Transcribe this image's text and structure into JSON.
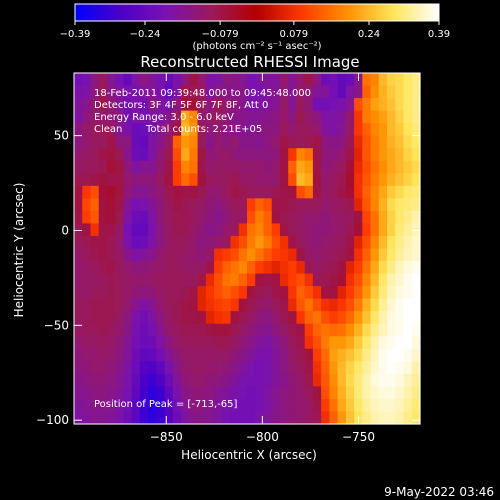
{
  "chart_data": {
    "type": "heatmap",
    "title": "Reconstructed RHESSI Image",
    "xlabel": "Heliocentric X (arcsec)",
    "ylabel": "Heliocentric Y (arcsec)",
    "xlim": [
      -898,
      -718
    ],
    "ylim": [
      -102,
      83
    ],
    "x_ticks": [
      -850,
      -800,
      -750
    ],
    "x_tick_labels": [
      "−850",
      "−800",
      "−750"
    ],
    "y_ticks": [
      -100,
      -50,
      0,
      50
    ],
    "y_tick_labels": [
      "−100",
      "−50",
      "0",
      "50"
    ],
    "colorbar": {
      "range": [
        -0.39,
        0.39
      ],
      "tick_values": [
        -0.39,
        -0.24,
        -0.079,
        0.079,
        0.24,
        0.39
      ],
      "tick_labels": [
        "−0.39",
        "−0.24",
        "−0.079",
        "0.079",
        "0.24",
        "0.39"
      ],
      "units_label": "(photons cm⁻² s⁻¹ asec⁻²)",
      "colors": [
        "#0000ff",
        "#4b00c8",
        "#7a12b0",
        "#9a1a5a",
        "#b40000",
        "#ff3a00",
        "#ff9200",
        "#ffe55a",
        "#ffffff"
      ]
    },
    "annotations": {
      "time_range": "18-Feb-2011 09:39:48.000 to 09:45:48.000",
      "detectors": "Detectors: 3F 4F 5F 6F 7F 8F, Att 0",
      "energy_range": "Energy Range: 3.0 - 6.0 keV",
      "clean": "Clean",
      "total_counts": "Total counts: 2.21E+05",
      "peak": "Position of Peak = [-713,-65]"
    },
    "peak_position": [
      -713,
      -65
    ],
    "total_counts": 221000,
    "image_grid": [
      [
        -0.21,
        -0.2,
        -0.14,
        -0.1,
        -0.16,
        -0.2,
        -0.24,
        -0.18,
        -0.14,
        -0.17,
        -0.2,
        -0.23,
        -0.19,
        -0.14,
        -0.07,
        -0.12,
        -0.18,
        -0.18,
        -0.14,
        -0.15,
        -0.16,
        -0.2,
        -0.18,
        -0.17,
        -0.17,
        -0.12,
        -0.16,
        -0.12,
        -0.08,
        -0.14,
        -0.22,
        -0.21,
        -0.24,
        -0.23,
        -0.15,
        0.16,
        0.18,
        0.24,
        0.27,
        0.28,
        0.3,
        0.32
      ],
      [
        -0.19,
        -0.18,
        -0.14,
        -0.09,
        -0.15,
        -0.17,
        -0.19,
        -0.2,
        -0.17,
        -0.16,
        -0.19,
        -0.24,
        -0.18,
        -0.08,
        -0.09,
        -0.1,
        -0.18,
        -0.14,
        -0.15,
        -0.15,
        -0.15,
        -0.19,
        -0.19,
        -0.17,
        -0.16,
        -0.12,
        -0.16,
        -0.11,
        -0.13,
        -0.17,
        -0.17,
        -0.21,
        -0.24,
        -0.18,
        -0.15,
        0.14,
        0.19,
        0.23,
        0.26,
        0.28,
        0.3,
        0.32
      ],
      [
        -0.17,
        -0.16,
        -0.12,
        -0.08,
        -0.12,
        -0.17,
        -0.21,
        -0.18,
        -0.21,
        -0.14,
        -0.18,
        -0.2,
        -0.14,
        -0.07,
        -0.06,
        -0.1,
        -0.14,
        -0.09,
        -0.12,
        -0.14,
        -0.15,
        -0.19,
        -0.18,
        -0.17,
        -0.16,
        -0.11,
        -0.16,
        -0.1,
        -0.13,
        -0.21,
        -0.21,
        -0.2,
        -0.19,
        -0.16,
        0.12,
        0.17,
        0.21,
        0.23,
        0.25,
        0.28,
        0.3,
        0.32
      ],
      [
        -0.18,
        -0.14,
        -0.12,
        -0.12,
        -0.13,
        -0.14,
        -0.21,
        -0.18,
        -0.2,
        -0.18,
        -0.18,
        -0.15,
        -0.1,
        0.22,
        0.18,
        -0.12,
        -0.11,
        -0.1,
        -0.13,
        -0.15,
        -0.15,
        -0.16,
        -0.16,
        -0.15,
        -0.14,
        -0.12,
        -0.14,
        -0.09,
        -0.12,
        -0.14,
        -0.18,
        -0.18,
        -0.17,
        -0.12,
        0.09,
        0.17,
        0.19,
        0.21,
        0.24,
        0.27,
        0.3,
        0.32
      ],
      [
        -0.14,
        -0.11,
        -0.1,
        -0.09,
        -0.1,
        -0.16,
        -0.19,
        -0.23,
        -0.22,
        -0.2,
        -0.16,
        -0.12,
        -0.08,
        0.24,
        0.2,
        -0.1,
        -0.13,
        -0.12,
        -0.14,
        -0.15,
        -0.16,
        -0.16,
        -0.15,
        -0.14,
        -0.14,
        -0.1,
        -0.12,
        -0.1,
        -0.1,
        -0.12,
        -0.17,
        -0.18,
        -0.16,
        -0.11,
        0.09,
        0.14,
        0.18,
        0.2,
        0.24,
        0.26,
        0.29,
        0.31
      ],
      [
        -0.14,
        -0.12,
        -0.1,
        -0.1,
        -0.08,
        -0.13,
        -0.14,
        -0.23,
        -0.24,
        -0.18,
        -0.15,
        -0.1,
        0.14,
        0.2,
        0.18,
        -0.1,
        -0.15,
        -0.12,
        -0.14,
        -0.12,
        -0.15,
        -0.15,
        -0.16,
        -0.14,
        -0.12,
        -0.08,
        -0.09,
        -0.1,
        -0.09,
        -0.08,
        -0.14,
        -0.15,
        -0.14,
        -0.09,
        0.07,
        0.13,
        0.17,
        0.2,
        0.23,
        0.25,
        0.28,
        0.3
      ],
      [
        -0.12,
        -0.11,
        -0.1,
        -0.08,
        -0.07,
        -0.09,
        -0.16,
        -0.22,
        -0.23,
        -0.18,
        -0.13,
        -0.09,
        0.12,
        0.22,
        0.17,
        -0.08,
        -0.13,
        -0.12,
        -0.11,
        -0.13,
        -0.14,
        -0.14,
        -0.14,
        -0.14,
        -0.13,
        -0.07,
        0.09,
        0.18,
        0.16,
        -0.08,
        -0.13,
        -0.14,
        -0.12,
        -0.08,
        0.06,
        0.13,
        0.17,
        0.2,
        0.22,
        0.24,
        0.27,
        0.29
      ],
      [
        -0.11,
        -0.1,
        -0.1,
        -0.09,
        -0.06,
        -0.07,
        -0.13,
        -0.18,
        -0.16,
        -0.16,
        -0.12,
        -0.08,
        0.1,
        0.18,
        0.16,
        -0.08,
        -0.12,
        -0.11,
        -0.11,
        -0.11,
        -0.12,
        -0.12,
        -0.12,
        -0.13,
        -0.12,
        -0.07,
        0.14,
        0.22,
        0.2,
        -0.08,
        -0.13,
        -0.12,
        -0.1,
        -0.06,
        0.07,
        0.12,
        0.16,
        0.19,
        0.22,
        0.24,
        0.26,
        0.28
      ],
      [
        -0.09,
        -0.09,
        -0.08,
        -0.07,
        -0.08,
        -0.08,
        -0.12,
        -0.14,
        -0.13,
        -0.13,
        -0.1,
        -0.07,
        0.1,
        0.15,
        0.12,
        -0.07,
        -0.1,
        -0.11,
        -0.1,
        -0.09,
        -0.11,
        -0.11,
        -0.12,
        -0.12,
        -0.12,
        -0.07,
        0.12,
        0.24,
        0.22,
        -0.07,
        -0.12,
        -0.1,
        -0.09,
        -0.05,
        0.08,
        0.13,
        0.17,
        0.2,
        0.23,
        0.25,
        0.27,
        0.29
      ],
      [
        -0.07,
        0.09,
        0.12,
        -0.06,
        -0.05,
        -0.07,
        -0.13,
        -0.16,
        -0.16,
        -0.14,
        -0.12,
        -0.09,
        -0.07,
        -0.08,
        -0.07,
        -0.09,
        -0.12,
        -0.12,
        -0.1,
        -0.08,
        -0.09,
        -0.1,
        -0.1,
        -0.1,
        -0.09,
        -0.08,
        -0.07,
        0.12,
        0.15,
        -0.08,
        -0.11,
        -0.1,
        -0.08,
        -0.06,
        0.08,
        0.14,
        0.18,
        0.22,
        0.26,
        0.28,
        0.3,
        0.31
      ],
      [
        -0.07,
        0.11,
        0.14,
        -0.07,
        -0.06,
        -0.08,
        -0.16,
        -0.2,
        -0.19,
        -0.17,
        -0.13,
        -0.1,
        -0.08,
        -0.09,
        -0.1,
        -0.11,
        -0.13,
        -0.14,
        -0.12,
        -0.1,
        -0.1,
        0.1,
        0.14,
        0.12,
        -0.08,
        -0.08,
        -0.09,
        -0.1,
        -0.1,
        -0.1,
        -0.12,
        -0.11,
        -0.1,
        -0.09,
        0.06,
        0.13,
        0.18,
        0.23,
        0.28,
        0.3,
        0.31,
        0.32
      ],
      [
        -0.08,
        0.1,
        0.13,
        -0.07,
        -0.06,
        -0.09,
        -0.18,
        -0.22,
        -0.23,
        -0.18,
        -0.13,
        -0.1,
        -0.09,
        -0.09,
        -0.1,
        -0.12,
        -0.14,
        -0.15,
        -0.13,
        -0.11,
        -0.11,
        0.12,
        0.17,
        0.14,
        -0.07,
        -0.09,
        -0.1,
        -0.11,
        -0.12,
        -0.12,
        -0.13,
        -0.12,
        -0.11,
        -0.1,
        -0.07,
        0.11,
        0.16,
        0.22,
        0.27,
        0.3,
        0.32,
        0.34
      ],
      [
        -0.09,
        -0.07,
        0.08,
        -0.08,
        -0.08,
        -0.11,
        -0.2,
        -0.24,
        -0.24,
        -0.19,
        -0.14,
        -0.11,
        -0.09,
        -0.09,
        -0.11,
        -0.13,
        -0.15,
        -0.14,
        -0.12,
        -0.1,
        0.08,
        0.16,
        0.18,
        0.14,
        0.1,
        -0.08,
        -0.1,
        -0.11,
        -0.12,
        -0.13,
        -0.13,
        -0.12,
        -0.11,
        -0.09,
        -0.06,
        0.1,
        0.16,
        0.22,
        0.27,
        0.31,
        0.33,
        0.35
      ],
      [
        -0.1,
        -0.09,
        -0.08,
        -0.08,
        -0.09,
        -0.12,
        -0.19,
        -0.23,
        -0.22,
        -0.18,
        -0.14,
        -0.11,
        -0.1,
        -0.1,
        -0.12,
        -0.14,
        -0.13,
        -0.12,
        -0.1,
        0.08,
        0.12,
        0.17,
        0.2,
        0.17,
        0.12,
        0.08,
        -0.08,
        -0.1,
        -0.12,
        -0.13,
        -0.12,
        -0.11,
        -0.1,
        -0.08,
        0.06,
        0.12,
        0.18,
        0.24,
        0.29,
        0.32,
        0.34,
        0.36
      ],
      [
        -0.11,
        -0.1,
        -0.09,
        -0.08,
        -0.09,
        -0.11,
        -0.15,
        -0.18,
        -0.17,
        -0.15,
        -0.12,
        -0.1,
        -0.1,
        -0.11,
        -0.12,
        -0.13,
        -0.11,
        0.08,
        0.1,
        0.12,
        0.16,
        0.19,
        0.16,
        0.13,
        0.1,
        0.09,
        0.07,
        -0.08,
        -0.11,
        -0.12,
        -0.11,
        -0.1,
        -0.09,
        -0.07,
        0.08,
        0.14,
        0.2,
        0.26,
        0.3,
        0.33,
        0.35,
        0.36
      ],
      [
        -0.12,
        -0.11,
        -0.1,
        -0.09,
        -0.08,
        -0.1,
        -0.12,
        -0.14,
        -0.13,
        -0.12,
        -0.11,
        -0.1,
        -0.1,
        -0.11,
        -0.11,
        -0.11,
        -0.08,
        0.1,
        0.14,
        0.16,
        0.18,
        0.14,
        0.1,
        0.08,
        0.06,
        0.08,
        0.1,
        0.07,
        -0.09,
        -0.11,
        -0.1,
        -0.09,
        -0.07,
        0.06,
        0.1,
        0.16,
        0.22,
        0.28,
        0.32,
        0.35,
        0.37,
        0.38
      ],
      [
        -0.12,
        -0.11,
        -0.11,
        -0.1,
        -0.09,
        -0.1,
        -0.11,
        -0.12,
        -0.12,
        -0.11,
        -0.1,
        -0.1,
        -0.1,
        -0.1,
        -0.1,
        -0.08,
        0.07,
        0.12,
        0.16,
        0.17,
        0.14,
        0.1,
        -0.07,
        -0.08,
        -0.07,
        0.07,
        0.1,
        0.12,
        0.08,
        -0.09,
        -0.09,
        -0.08,
        -0.06,
        0.08,
        0.12,
        0.18,
        0.24,
        0.3,
        0.34,
        0.36,
        0.38,
        0.39
      ],
      [
        -0.11,
        -0.11,
        -0.1,
        -0.1,
        -0.09,
        -0.1,
        -0.11,
        -0.13,
        -0.14,
        -0.13,
        -0.11,
        -0.1,
        -0.1,
        -0.09,
        -0.08,
        0.06,
        0.09,
        0.12,
        0.14,
        0.12,
        0.09,
        -0.07,
        -0.09,
        -0.1,
        -0.08,
        -0.07,
        0.09,
        0.14,
        0.12,
        0.08,
        -0.07,
        -0.07,
        0.06,
        0.1,
        0.14,
        0.2,
        0.26,
        0.31,
        0.35,
        0.37,
        0.38,
        0.39
      ],
      [
        -0.1,
        -0.1,
        -0.09,
        -0.09,
        -0.09,
        -0.1,
        -0.12,
        -0.16,
        -0.18,
        -0.16,
        -0.12,
        -0.1,
        -0.09,
        -0.08,
        -0.07,
        0.06,
        0.08,
        0.1,
        0.11,
        0.09,
        -0.07,
        -0.09,
        -0.11,
        -0.12,
        -0.1,
        -0.08,
        0.07,
        0.13,
        0.16,
        0.12,
        0.08,
        0.07,
        0.09,
        0.12,
        0.17,
        0.23,
        0.28,
        0.33,
        0.36,
        0.38,
        0.39,
        0.39
      ],
      [
        -0.1,
        -0.1,
        -0.09,
        -0.09,
        -0.09,
        -0.11,
        -0.14,
        -0.19,
        -0.21,
        -0.18,
        -0.14,
        -0.11,
        -0.09,
        -0.08,
        -0.08,
        -0.07,
        0.06,
        0.08,
        0.09,
        -0.07,
        -0.09,
        -0.11,
        -0.13,
        -0.14,
        -0.12,
        -0.09,
        -0.07,
        0.09,
        0.14,
        0.16,
        0.12,
        0.1,
        0.12,
        0.15,
        0.2,
        0.25,
        0.3,
        0.34,
        0.37,
        0.38,
        0.39,
        0.39
      ],
      [
        -0.11,
        -0.1,
        -0.1,
        -0.09,
        -0.1,
        -0.12,
        -0.15,
        -0.2,
        -0.22,
        -0.2,
        -0.16,
        -0.12,
        -0.1,
        -0.09,
        -0.09,
        -0.09,
        -0.08,
        -0.07,
        -0.07,
        -0.09,
        -0.11,
        -0.13,
        -0.15,
        -0.16,
        -0.14,
        -0.11,
        -0.09,
        -0.07,
        0.1,
        0.14,
        0.16,
        0.15,
        0.16,
        0.19,
        0.23,
        0.28,
        0.32,
        0.35,
        0.37,
        0.38,
        0.39,
        0.38
      ],
      [
        -0.12,
        -0.11,
        -0.11,
        -0.1,
        -0.11,
        -0.13,
        -0.16,
        -0.21,
        -0.23,
        -0.22,
        -0.18,
        -0.14,
        -0.11,
        -0.1,
        -0.1,
        -0.1,
        -0.1,
        -0.09,
        -0.09,
        -0.11,
        -0.13,
        -0.15,
        -0.17,
        -0.18,
        -0.16,
        -0.13,
        -0.1,
        -0.08,
        0.08,
        0.12,
        0.17,
        0.2,
        0.2,
        0.22,
        0.26,
        0.3,
        0.34,
        0.37,
        0.38,
        0.39,
        0.39,
        0.37
      ],
      [
        -0.13,
        -0.12,
        -0.12,
        -0.11,
        -0.12,
        -0.14,
        -0.17,
        -0.22,
        -0.25,
        -0.24,
        -0.21,
        -0.17,
        -0.13,
        -0.11,
        -0.11,
        -0.11,
        -0.11,
        -0.11,
        -0.11,
        -0.13,
        -0.15,
        -0.17,
        -0.19,
        -0.19,
        -0.17,
        -0.14,
        -0.11,
        -0.09,
        -0.07,
        0.1,
        0.15,
        0.21,
        0.23,
        0.25,
        0.28,
        0.32,
        0.35,
        0.38,
        0.39,
        0.39,
        0.38,
        0.36
      ],
      [
        -0.14,
        -0.13,
        -0.12,
        -0.12,
        -0.13,
        -0.15,
        -0.18,
        -0.23,
        -0.27,
        -0.28,
        -0.25,
        -0.2,
        -0.15,
        -0.12,
        -0.11,
        -0.11,
        -0.12,
        -0.12,
        -0.13,
        -0.15,
        -0.17,
        -0.19,
        -0.2,
        -0.19,
        -0.17,
        -0.14,
        -0.12,
        -0.1,
        -0.08,
        0.08,
        0.14,
        0.2,
        0.24,
        0.27,
        0.3,
        0.33,
        0.36,
        0.38,
        0.39,
        0.38,
        0.37,
        0.34
      ],
      [
        -0.15,
        -0.14,
        -0.13,
        -0.13,
        -0.14,
        -0.16,
        -0.19,
        -0.24,
        -0.29,
        -0.31,
        -0.28,
        -0.23,
        -0.17,
        -0.13,
        -0.12,
        -0.12,
        -0.13,
        -0.14,
        -0.15,
        -0.17,
        -0.19,
        -0.2,
        -0.2,
        -0.19,
        -0.17,
        -0.15,
        -0.13,
        -0.11,
        -0.09,
        0.07,
        0.13,
        0.19,
        0.24,
        0.28,
        0.31,
        0.34,
        0.37,
        0.38,
        0.38,
        0.37,
        0.35,
        0.33
      ],
      [
        -0.16,
        -0.15,
        -0.14,
        -0.14,
        -0.15,
        -0.17,
        -0.2,
        -0.25,
        -0.3,
        -0.33,
        -0.31,
        -0.25,
        -0.19,
        -0.15,
        -0.13,
        -0.13,
        -0.14,
        -0.16,
        -0.17,
        -0.19,
        -0.2,
        -0.21,
        -0.2,
        -0.18,
        -0.16,
        -0.14,
        -0.13,
        -0.12,
        -0.1,
        -0.07,
        0.12,
        0.18,
        0.23,
        0.27,
        0.31,
        0.34,
        0.36,
        0.37,
        0.37,
        0.36,
        0.34,
        0.32
      ],
      [
        -0.17,
        -0.16,
        -0.15,
        -0.15,
        -0.16,
        -0.18,
        -0.21,
        -0.26,
        -0.31,
        -0.34,
        -0.32,
        -0.27,
        -0.21,
        -0.16,
        -0.14,
        -0.14,
        -0.15,
        -0.17,
        -0.19,
        -0.2,
        -0.21,
        -0.21,
        -0.2,
        -0.18,
        -0.16,
        -0.14,
        -0.13,
        -0.12,
        -0.11,
        -0.08,
        0.1,
        0.16,
        0.22,
        0.26,
        0.3,
        0.33,
        0.35,
        0.36,
        0.36,
        0.35,
        0.33,
        0.31
      ],
      [
        -0.18,
        -0.17,
        -0.16,
        -0.16,
        -0.17,
        -0.19,
        -0.22,
        -0.26,
        -0.31,
        -0.33,
        -0.31,
        -0.27,
        -0.22,
        -0.18,
        -0.15,
        -0.15,
        -0.16,
        -0.18,
        -0.2,
        -0.21,
        -0.21,
        -0.21,
        -0.19,
        -0.17,
        -0.15,
        -0.14,
        -0.13,
        -0.12,
        -0.11,
        -0.09,
        0.08,
        0.14,
        0.2,
        0.25,
        0.29,
        0.32,
        0.34,
        0.35,
        0.35,
        0.34,
        0.32,
        0.3
      ]
    ]
  }
}
